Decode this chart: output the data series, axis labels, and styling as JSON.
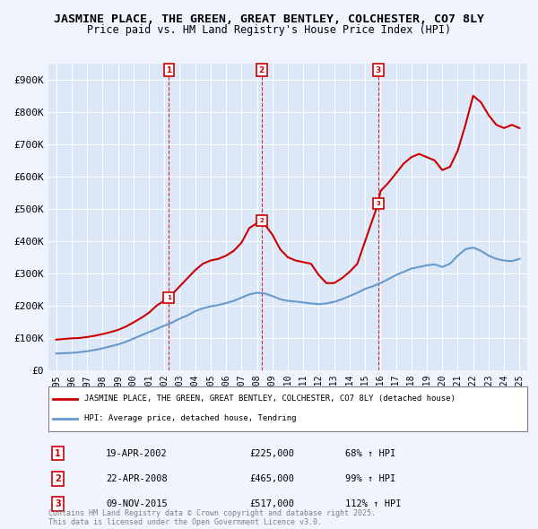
{
  "title": "JASMINE PLACE, THE GREEN, GREAT BENTLEY, COLCHESTER, CO7 8LY",
  "subtitle": "Price paid vs. HM Land Registry's House Price Index (HPI)",
  "ylabel": "",
  "background_color": "#f0f4ff",
  "plot_bg_color": "#dce8f8",
  "legend_label_red": "JASMINE PLACE, THE GREEN, GREAT BENTLEY, COLCHESTER, CO7 8LY (detached house)",
  "legend_label_blue": "HPI: Average price, detached house, Tendring",
  "footnote": "Contains HM Land Registry data © Crown copyright and database right 2025.\nThis data is licensed under the Open Government Licence v3.0.",
  "sales": [
    {
      "label": "1",
      "date": "19-APR-2002",
      "price": 225000,
      "hpi_pct": "68% ↑ HPI",
      "year": 2002.3
    },
    {
      "label": "2",
      "date": "22-APR-2008",
      "price": 465000,
      "hpi_pct": "99% ↑ HPI",
      "year": 2008.3
    },
    {
      "label": "3",
      "date": "09-NOV-2015",
      "price": 517000,
      "hpi_pct": "112% ↑ HPI",
      "year": 2015.85
    }
  ],
  "red_line": {
    "x": [
      1995,
      1995.5,
      1996,
      1996.5,
      1997,
      1997.5,
      1998,
      1998.5,
      1999,
      1999.5,
      2000,
      2000.5,
      2001,
      2001.5,
      2002.3,
      2003,
      2003.5,
      2004,
      2004.5,
      2005,
      2005.5,
      2006,
      2006.5,
      2007,
      2007.5,
      2008.3,
      2009,
      2009.5,
      2010,
      2010.5,
      2011,
      2011.5,
      2012,
      2012.5,
      2013,
      2013.5,
      2014,
      2014.5,
      2015.85,
      2016,
      2016.5,
      2017,
      2017.5,
      2018,
      2018.5,
      2019,
      2019.5,
      2020,
      2020.5,
      2021,
      2021.5,
      2022,
      2022.5,
      2023,
      2023.5,
      2024,
      2024.5,
      2025
    ],
    "y": [
      95000,
      97000,
      99000,
      100000,
      103000,
      107000,
      112000,
      118000,
      125000,
      135000,
      148000,
      162000,
      178000,
      200000,
      225000,
      260000,
      285000,
      310000,
      330000,
      340000,
      345000,
      355000,
      370000,
      395000,
      440000,
      465000,
      420000,
      375000,
      350000,
      340000,
      335000,
      330000,
      295000,
      270000,
      270000,
      285000,
      305000,
      330000,
      517000,
      555000,
      580000,
      610000,
      640000,
      660000,
      670000,
      660000,
      650000,
      620000,
      630000,
      680000,
      760000,
      850000,
      830000,
      790000,
      760000,
      750000,
      760000,
      750000
    ]
  },
  "blue_line": {
    "x": [
      1995,
      1995.5,
      1996,
      1996.5,
      1997,
      1997.5,
      1998,
      1998.5,
      1999,
      1999.5,
      2000,
      2000.5,
      2001,
      2001.5,
      2002,
      2002.5,
      2003,
      2003.5,
      2004,
      2004.5,
      2005,
      2005.5,
      2006,
      2006.5,
      2007,
      2007.5,
      2008,
      2008.5,
      2009,
      2009.5,
      2010,
      2010.5,
      2011,
      2011.5,
      2012,
      2012.5,
      2013,
      2013.5,
      2014,
      2014.5,
      2015,
      2015.5,
      2016,
      2016.5,
      2017,
      2017.5,
      2018,
      2018.5,
      2019,
      2019.5,
      2020,
      2020.5,
      2021,
      2021.5,
      2022,
      2022.5,
      2023,
      2023.5,
      2024,
      2024.5,
      2025
    ],
    "y": [
      52000,
      53000,
      54000,
      56000,
      59000,
      63000,
      68000,
      74000,
      80000,
      88000,
      98000,
      108000,
      118000,
      128000,
      138000,
      148000,
      160000,
      170000,
      183000,
      192000,
      198000,
      202000,
      208000,
      215000,
      225000,
      235000,
      240000,
      238000,
      230000,
      220000,
      215000,
      213000,
      210000,
      207000,
      205000,
      207000,
      212000,
      220000,
      230000,
      240000,
      252000,
      260000,
      270000,
      282000,
      295000,
      305000,
      315000,
      320000,
      325000,
      328000,
      320000,
      330000,
      355000,
      375000,
      380000,
      370000,
      355000,
      345000,
      340000,
      338000,
      345000
    ]
  },
  "ylim": [
    0,
    950000
  ],
  "xlim": [
    1994.5,
    2025.5
  ],
  "yticks": [
    0,
    100000,
    200000,
    300000,
    400000,
    500000,
    600000,
    700000,
    800000,
    900000
  ],
  "ytick_labels": [
    "£0",
    "£100K",
    "£200K",
    "£300K",
    "£400K",
    "£500K",
    "£600K",
    "£700K",
    "£800K",
    "£900K"
  ],
  "xticks": [
    1995,
    1996,
    1997,
    1998,
    1999,
    2000,
    2001,
    2002,
    2003,
    2004,
    2005,
    2006,
    2007,
    2008,
    2009,
    2010,
    2011,
    2012,
    2013,
    2014,
    2015,
    2016,
    2017,
    2018,
    2019,
    2020,
    2021,
    2022,
    2023,
    2024,
    2025
  ],
  "red_color": "#cc0000",
  "blue_color": "#6699cc",
  "dashed_color": "#cc0000",
  "marker_box_color": "#cc0000"
}
